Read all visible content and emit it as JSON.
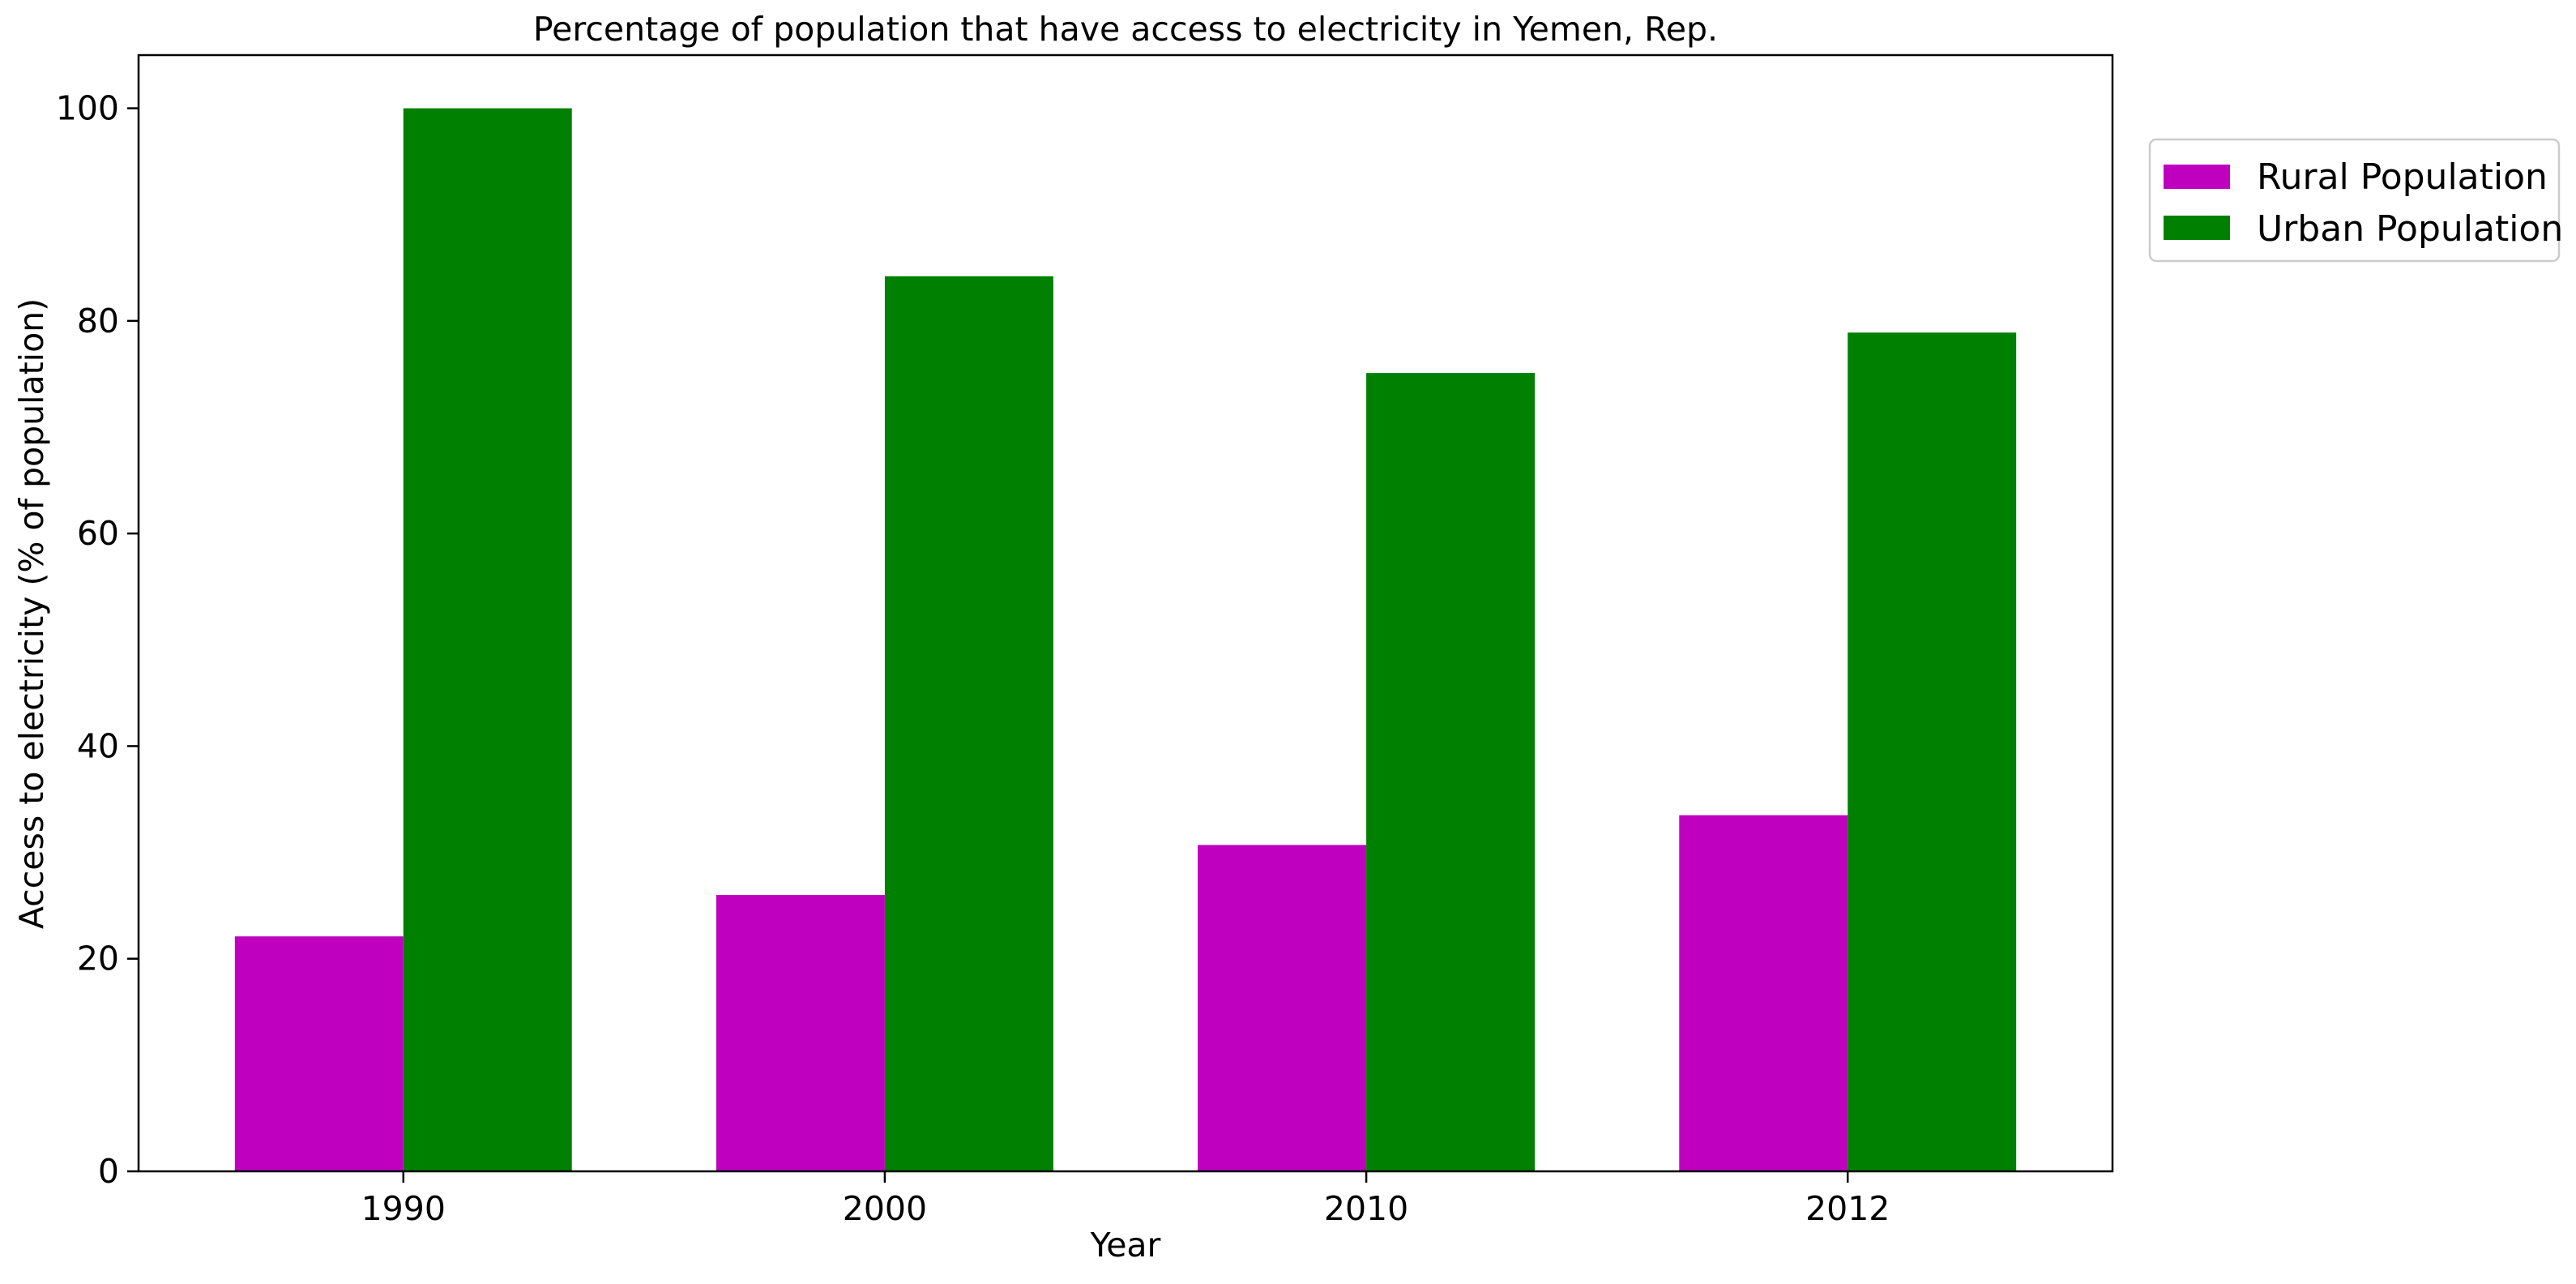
{
  "chart_data": {
    "type": "bar",
    "title": "Percentage of population that have access to electricity in Yemen, Rep.",
    "xlabel": "Year",
    "ylabel": "Access to electricity (% of population)",
    "categories": [
      "1990",
      "2000",
      "2010",
      "2012"
    ],
    "series": [
      {
        "name": "Rural Population",
        "color": "#bf00bf",
        "values": [
          22.1,
          26.0,
          30.7,
          33.5
        ]
      },
      {
        "name": "Urban Population",
        "color": "#008000",
        "values": [
          100.0,
          84.2,
          75.1,
          78.9
        ]
      }
    ],
    "ylim": [
      0,
      105
    ],
    "yticks": [
      0,
      20,
      40,
      60,
      80,
      100
    ],
    "grid": false,
    "legend": "upper right, outside plot area"
  }
}
